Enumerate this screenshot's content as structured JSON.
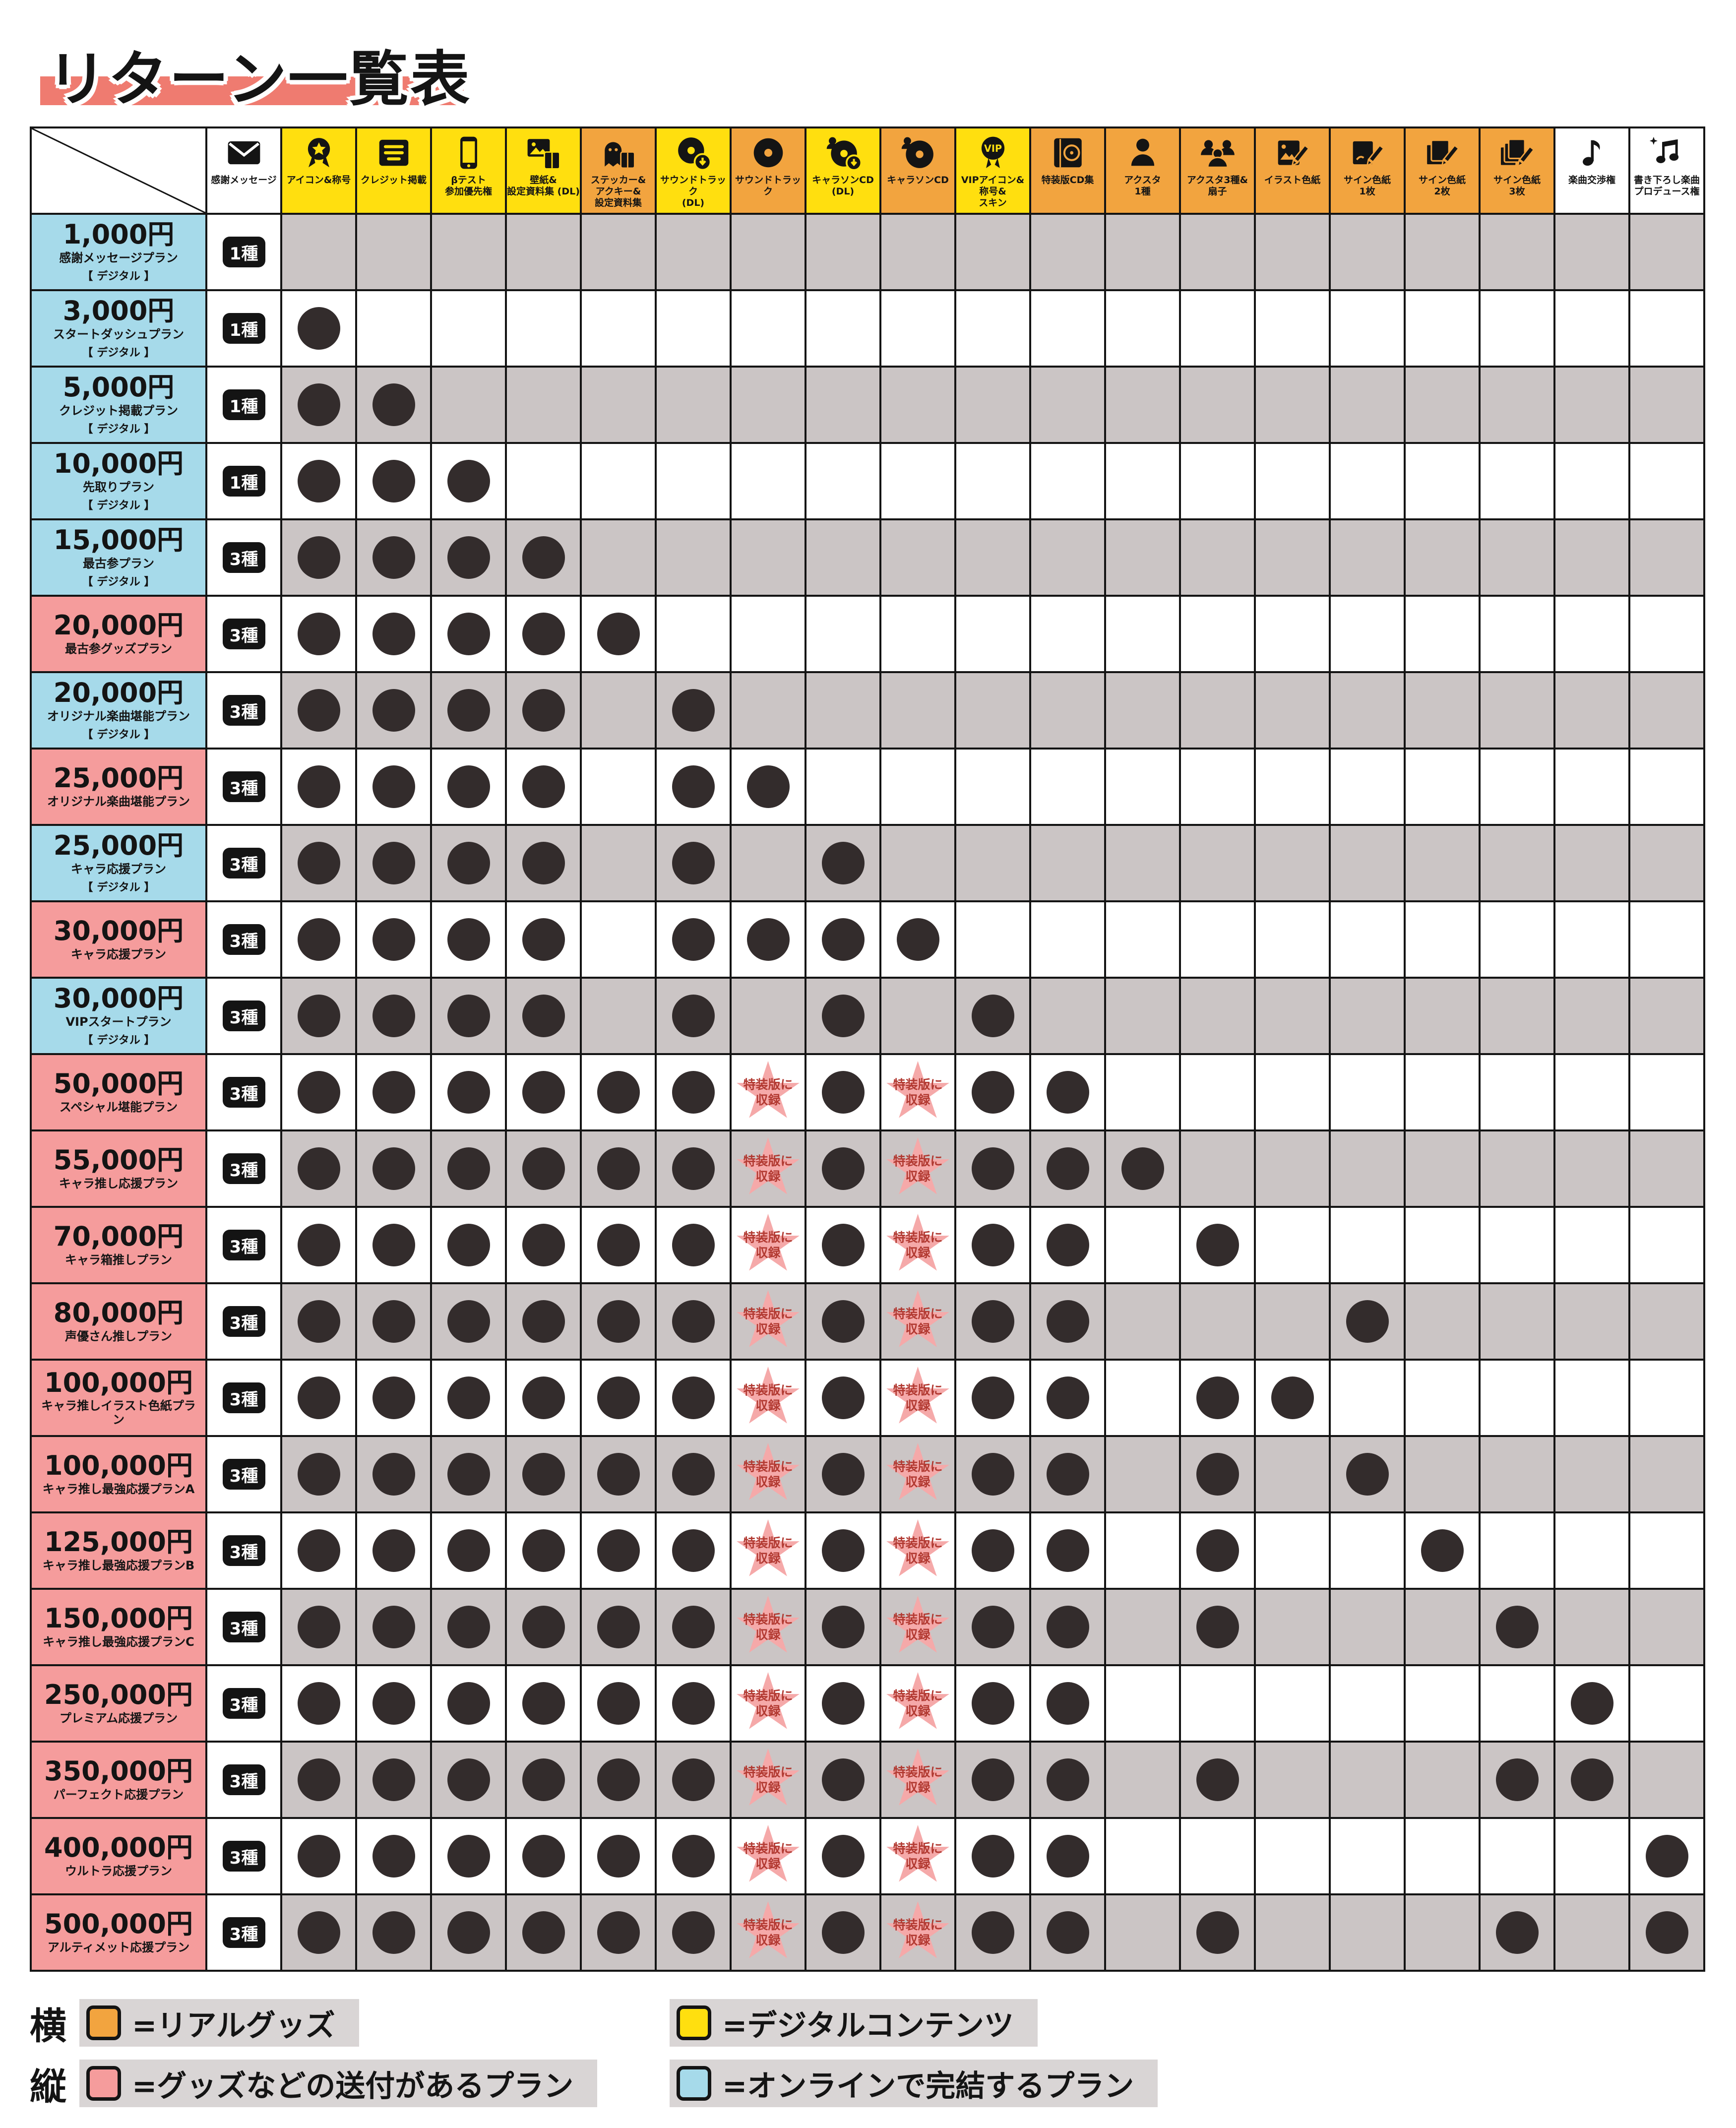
{
  "title": "リターン一覧表",
  "colors": {
    "digital_column": "#FFDF0F",
    "goods_column": "#F2A43F",
    "online_plan_row": "#A6DAEA",
    "shipping_plan_row": "#F59C9C",
    "empty_cell_gray": "#CBC5C5",
    "dot": "#332C2C",
    "star_fill": "#F5A9A9",
    "star_text": "#B23A32",
    "title_bar": "#EF7B70",
    "legend_bar": "#D9D5D5",
    "grid_line": "#141414"
  },
  "chart_data": {
    "type": "table",
    "title": "リターン一覧表",
    "star_note": [
      "特装版に",
      "収録"
    ],
    "columns": [
      {
        "label": "感謝メッセージ",
        "category": "neutral",
        "icon": "envelope-icon"
      },
      {
        "label": "アイコン&称号",
        "category": "digital",
        "icon": "medal-icon"
      },
      {
        "label": "クレジット掲載",
        "category": "digital",
        "icon": "credits-icon"
      },
      {
        "label": "βテスト\n参加優先権",
        "category": "digital",
        "icon": "smartphone-icon"
      },
      {
        "label": "壁紙&\n設定資料集 (DL)",
        "category": "digital",
        "icon": "wallpaper-icon"
      },
      {
        "label": "ステッカー&\nアクキー&\n設定資料集",
        "category": "goods",
        "icon": "sticker-icon"
      },
      {
        "label": "サウンドトラック\n(DL)",
        "category": "digital",
        "icon": "cd-download-icon"
      },
      {
        "label": "サウンドトラック",
        "category": "goods",
        "icon": "cd-icon"
      },
      {
        "label": "キャラソンCD\n(DL)",
        "category": "digital",
        "icon": "character-cd-download-icon"
      },
      {
        "label": "キャラソンCD",
        "category": "goods",
        "icon": "character-cd-icon"
      },
      {
        "label": "VIPアイコン&\n称号&\nスキン",
        "category": "digital",
        "icon": "vip-badge-icon"
      },
      {
        "label": "特装版CD集",
        "category": "goods",
        "icon": "cd-collection-icon"
      },
      {
        "label": "アクスタ\n1種",
        "category": "goods",
        "icon": "acrylic-stand-icon"
      },
      {
        "label": "アクスタ3種&\n扇子",
        "category": "goods",
        "icon": "acrylic-stand-set-icon"
      },
      {
        "label": "イラスト色紙",
        "category": "goods",
        "icon": "illustration-board-icon"
      },
      {
        "label": "サイン色紙\n1枚",
        "category": "goods",
        "icon": "signed-board-1-icon"
      },
      {
        "label": "サイン色紙\n2枚",
        "category": "goods",
        "icon": "signed-board-2-icon"
      },
      {
        "label": "サイン色紙\n3枚",
        "category": "goods",
        "icon": "signed-board-3-icon"
      },
      {
        "label": "楽曲交渉権",
        "category": "neutral",
        "icon": "music-note-icon"
      },
      {
        "label": "書き下ろし楽曲\nプロデュース権",
        "category": "neutral",
        "icon": "music-produce-icon"
      }
    ],
    "plans": [
      {
        "price": "1,000円",
        "name": "感謝メッセージプラン",
        "online": true,
        "digital_tag": "【 デジタル 】",
        "message_kinds": "1種",
        "dots": [],
        "stars": []
      },
      {
        "price": "3,000円",
        "name": "スタートダッシュプラン",
        "online": true,
        "digital_tag": "【 デジタル 】",
        "message_kinds": "1種",
        "dots": [
          2
        ],
        "stars": []
      },
      {
        "price": "5,000円",
        "name": "クレジット掲載プラン",
        "online": true,
        "digital_tag": "【 デジタル 】",
        "message_kinds": "1種",
        "dots": [
          2,
          3
        ],
        "stars": []
      },
      {
        "price": "10,000円",
        "name": "先取りプラン",
        "online": true,
        "digital_tag": "【 デジタル 】",
        "message_kinds": "1種",
        "dots": [
          2,
          3,
          4
        ],
        "stars": []
      },
      {
        "price": "15,000円",
        "name": "最古参プラン",
        "online": true,
        "digital_tag": "【 デジタル 】",
        "message_kinds": "3種",
        "dots": [
          2,
          3,
          4,
          5
        ],
        "stars": []
      },
      {
        "price": "20,000円",
        "name": "最古参グッズプラン",
        "online": false,
        "digital_tag": "",
        "message_kinds": "3種",
        "dots": [
          2,
          3,
          4,
          5,
          6
        ],
        "stars": []
      },
      {
        "price": "20,000円",
        "name": "オリジナル楽曲堪能プラン",
        "online": true,
        "digital_tag": "【 デジタル 】",
        "message_kinds": "3種",
        "dots": [
          2,
          3,
          4,
          5,
          7
        ],
        "stars": []
      },
      {
        "price": "25,000円",
        "name": "オリジナル楽曲堪能プラン",
        "online": false,
        "digital_tag": "",
        "message_kinds": "3種",
        "dots": [
          2,
          3,
          4,
          5,
          7,
          8
        ],
        "stars": []
      },
      {
        "price": "25,000円",
        "name": "キャラ応援プラン",
        "online": true,
        "digital_tag": "【 デジタル 】",
        "message_kinds": "3種",
        "dots": [
          2,
          3,
          4,
          5,
          7,
          9
        ],
        "stars": []
      },
      {
        "price": "30,000円",
        "name": "キャラ応援プラン",
        "online": false,
        "digital_tag": "",
        "message_kinds": "3種",
        "dots": [
          2,
          3,
          4,
          5,
          7,
          8,
          9,
          10
        ],
        "stars": []
      },
      {
        "price": "30,000円",
        "name": "VIPスタートプラン",
        "online": true,
        "digital_tag": "【 デジタル 】",
        "message_kinds": "3種",
        "dots": [
          2,
          3,
          4,
          5,
          7,
          9,
          11
        ],
        "stars": []
      },
      {
        "price": "50,000円",
        "name": "スペシャル堪能プラン",
        "online": false,
        "digital_tag": "",
        "message_kinds": "3種",
        "dots": [
          2,
          3,
          4,
          5,
          6,
          7,
          9,
          11,
          12
        ],
        "stars": [
          8,
          10
        ]
      },
      {
        "price": "55,000円",
        "name": "キャラ推し応援プラン",
        "online": false,
        "digital_tag": "",
        "message_kinds": "3種",
        "dots": [
          2,
          3,
          4,
          5,
          6,
          7,
          9,
          11,
          12,
          13
        ],
        "stars": [
          8,
          10
        ]
      },
      {
        "price": "70,000円",
        "name": "キャラ箱推しプラン",
        "online": false,
        "digital_tag": "",
        "message_kinds": "3種",
        "dots": [
          2,
          3,
          4,
          5,
          6,
          7,
          9,
          11,
          12,
          14
        ],
        "stars": [
          8,
          10
        ]
      },
      {
        "price": "80,000円",
        "name": "声優さん推しプラン",
        "online": false,
        "digital_tag": "",
        "message_kinds": "3種",
        "dots": [
          2,
          3,
          4,
          5,
          6,
          7,
          9,
          11,
          12,
          16
        ],
        "stars": [
          8,
          10
        ]
      },
      {
        "price": "100,000円",
        "name": "キャラ推しイラスト色紙プラン",
        "online": false,
        "digital_tag": "",
        "message_kinds": "3種",
        "dots": [
          2,
          3,
          4,
          5,
          6,
          7,
          9,
          11,
          12,
          14,
          15
        ],
        "stars": [
          8,
          10
        ]
      },
      {
        "price": "100,000円",
        "name": "キャラ推し最強応援プランA",
        "online": false,
        "digital_tag": "",
        "message_kinds": "3種",
        "dots": [
          2,
          3,
          4,
          5,
          6,
          7,
          9,
          11,
          12,
          14,
          16
        ],
        "stars": [
          8,
          10
        ]
      },
      {
        "price": "125,000円",
        "name": "キャラ推し最強応援プランB",
        "online": false,
        "digital_tag": "",
        "message_kinds": "3種",
        "dots": [
          2,
          3,
          4,
          5,
          6,
          7,
          9,
          11,
          12,
          14,
          17
        ],
        "stars": [
          8,
          10
        ]
      },
      {
        "price": "150,000円",
        "name": "キャラ推し最強応援プランC",
        "online": false,
        "digital_tag": "",
        "message_kinds": "3種",
        "dots": [
          2,
          3,
          4,
          5,
          6,
          7,
          9,
          11,
          12,
          14,
          18
        ],
        "stars": [
          8,
          10
        ]
      },
      {
        "price": "250,000円",
        "name": "プレミアム応援プラン",
        "online": false,
        "digital_tag": "",
        "message_kinds": "3種",
        "dots": [
          2,
          3,
          4,
          5,
          6,
          7,
          9,
          11,
          12,
          19
        ],
        "stars": [
          8,
          10
        ]
      },
      {
        "price": "350,000円",
        "name": "パーフェクト応援プラン",
        "online": false,
        "digital_tag": "",
        "message_kinds": "3種",
        "dots": [
          2,
          3,
          4,
          5,
          6,
          7,
          9,
          11,
          12,
          14,
          18,
          19
        ],
        "stars": [
          8,
          10
        ]
      },
      {
        "price": "400,000円",
        "name": "ウルトラ応援プラン",
        "online": false,
        "digital_tag": "",
        "message_kinds": "3種",
        "dots": [
          2,
          3,
          4,
          5,
          6,
          7,
          9,
          11,
          12,
          20
        ],
        "stars": [
          8,
          10
        ]
      },
      {
        "price": "500,000円",
        "name": "アルティメット応援プラン",
        "online": false,
        "digital_tag": "",
        "message_kinds": "3種",
        "dots": [
          2,
          3,
          4,
          5,
          6,
          7,
          9,
          11,
          12,
          14,
          18,
          20
        ],
        "stars": [
          8,
          10
        ]
      }
    ]
  },
  "legend": {
    "horizontal_label": "横",
    "vertical_label": "縦",
    "real_goods": "=リアルグッズ",
    "digital_content": "=デジタルコンテンツ",
    "shipping_plan": "=グッズなどの送付があるプラン",
    "online_plan": "=オンラインで完結するプラン"
  }
}
